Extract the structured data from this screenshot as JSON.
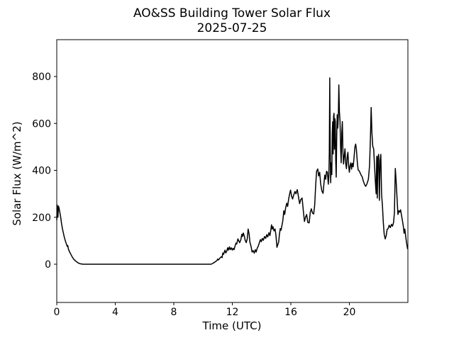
{
  "chart_data": {
    "type": "line",
    "title": "AO&SS Building Tower Solar Flux",
    "subtitle": "2025-07-25",
    "xlabel": "Time (UTC)",
    "ylabel": "Solar Flux (W/m^2)",
    "xlim": [
      0,
      24
    ],
    "ylim": [
      -163,
      957
    ],
    "xticks": [
      0,
      4,
      8,
      12,
      16,
      20
    ],
    "yticks": [
      0,
      200,
      400,
      600,
      800
    ],
    "grid": false,
    "legend_position": "none",
    "background": "#ffffff",
    "line_color": "#000000",
    "line_width": 1.5,
    "series": [
      {
        "name": "solar-flux",
        "points": [
          [
            0.0,
            188
          ],
          [
            0.03,
            252
          ],
          [
            0.08,
            200
          ],
          [
            0.12,
            248
          ],
          [
            0.17,
            235
          ],
          [
            0.22,
            218
          ],
          [
            0.27,
            200
          ],
          [
            0.33,
            172
          ],
          [
            0.4,
            148
          ],
          [
            0.47,
            128
          ],
          [
            0.53,
            112
          ],
          [
            0.6,
            97
          ],
          [
            0.67,
            84
          ],
          [
            0.72,
            76
          ],
          [
            0.75,
            80
          ],
          [
            0.8,
            64
          ],
          [
            0.88,
            52
          ],
          [
            0.95,
            44
          ],
          [
            1.05,
            32
          ],
          [
            1.15,
            22
          ],
          [
            1.3,
            13
          ],
          [
            1.45,
            6
          ],
          [
            1.6,
            2
          ],
          [
            1.8,
            0
          ],
          [
            3.0,
            0
          ],
          [
            5.0,
            0
          ],
          [
            7.0,
            0
          ],
          [
            9.0,
            0
          ],
          [
            10.3,
            0
          ],
          [
            10.55,
            0
          ],
          [
            10.65,
            3
          ],
          [
            10.75,
            7
          ],
          [
            10.85,
            11
          ],
          [
            10.95,
            16
          ],
          [
            11.0,
            22
          ],
          [
            11.05,
            18
          ],
          [
            11.15,
            26
          ],
          [
            11.25,
            32
          ],
          [
            11.3,
            28
          ],
          [
            11.35,
            48
          ],
          [
            11.4,
            42
          ],
          [
            11.5,
            60
          ],
          [
            11.55,
            48
          ],
          [
            11.62,
            56
          ],
          [
            11.68,
            70
          ],
          [
            11.73,
            60
          ],
          [
            11.8,
            74
          ],
          [
            11.85,
            62
          ],
          [
            11.92,
            70
          ],
          [
            12.0,
            60
          ],
          [
            12.05,
            68
          ],
          [
            12.12,
            62
          ],
          [
            12.18,
            76
          ],
          [
            12.25,
            90
          ],
          [
            12.3,
            86
          ],
          [
            12.38,
            108
          ],
          [
            12.45,
            98
          ],
          [
            12.5,
            92
          ],
          [
            12.58,
            104
          ],
          [
            12.65,
            128
          ],
          [
            12.7,
            118
          ],
          [
            12.75,
            133
          ],
          [
            12.82,
            120
          ],
          [
            12.88,
            102
          ],
          [
            12.95,
            92
          ],
          [
            13.02,
            108
          ],
          [
            13.08,
            150
          ],
          [
            13.15,
            128
          ],
          [
            13.2,
            95
          ],
          [
            13.28,
            76
          ],
          [
            13.35,
            52
          ],
          [
            13.42,
            58
          ],
          [
            13.5,
            47
          ],
          [
            13.57,
            62
          ],
          [
            13.63,
            52
          ],
          [
            13.7,
            68
          ],
          [
            13.78,
            78
          ],
          [
            13.85,
            92
          ],
          [
            13.92,
            105
          ],
          [
            13.98,
            96
          ],
          [
            14.05,
            110
          ],
          [
            14.12,
            102
          ],
          [
            14.2,
            118
          ],
          [
            14.28,
            110
          ],
          [
            14.35,
            126
          ],
          [
            14.42,
            116
          ],
          [
            14.5,
            134
          ],
          [
            14.57,
            122
          ],
          [
            14.63,
            145
          ],
          [
            14.68,
            168
          ],
          [
            14.73,
            150
          ],
          [
            14.78,
            160
          ],
          [
            14.85,
            142
          ],
          [
            14.92,
            150
          ],
          [
            14.98,
            125
          ],
          [
            15.05,
            72
          ],
          [
            15.1,
            82
          ],
          [
            15.17,
            95
          ],
          [
            15.22,
            128
          ],
          [
            15.28,
            152
          ],
          [
            15.33,
            145
          ],
          [
            15.4,
            168
          ],
          [
            15.45,
            185
          ],
          [
            15.52,
            228
          ],
          [
            15.58,
            212
          ],
          [
            15.65,
            242
          ],
          [
            15.72,
            260
          ],
          [
            15.78,
            246
          ],
          [
            15.85,
            278
          ],
          [
            15.92,
            300
          ],
          [
            15.98,
            316
          ],
          [
            16.05,
            290
          ],
          [
            16.12,
            278
          ],
          [
            16.2,
            296
          ],
          [
            16.28,
            310
          ],
          [
            16.35,
            300
          ],
          [
            16.44,
            318
          ],
          [
            16.52,
            288
          ],
          [
            16.6,
            258
          ],
          [
            16.68,
            276
          ],
          [
            16.77,
            282
          ],
          [
            16.85,
            230
          ],
          [
            16.93,
            182
          ],
          [
            17.0,
            200
          ],
          [
            17.08,
            212
          ],
          [
            17.16,
            178
          ],
          [
            17.25,
            176
          ],
          [
            17.33,
            222
          ],
          [
            17.4,
            236
          ],
          [
            17.48,
            218
          ],
          [
            17.56,
            214
          ],
          [
            17.63,
            252
          ],
          [
            17.7,
            340
          ],
          [
            17.76,
            396
          ],
          [
            17.84,
            406
          ],
          [
            17.9,
            376
          ],
          [
            17.97,
            392
          ],
          [
            18.04,
            342
          ],
          [
            18.12,
            312
          ],
          [
            18.2,
            302
          ],
          [
            18.26,
            342
          ],
          [
            18.32,
            380
          ],
          [
            18.38,
            362
          ],
          [
            18.44,
            396
          ],
          [
            18.5,
            392
          ],
          [
            18.56,
            341
          ],
          [
            18.6,
            380
          ],
          [
            18.63,
            480
          ],
          [
            18.66,
            794
          ],
          [
            18.69,
            500
          ],
          [
            18.72,
            347
          ],
          [
            18.76,
            432
          ],
          [
            18.8,
            382
          ],
          [
            18.83,
            560
          ],
          [
            18.86,
            607
          ],
          [
            18.89,
            470
          ],
          [
            18.92,
            630
          ],
          [
            18.95,
            643
          ],
          [
            18.98,
            490
          ],
          [
            19.01,
            620
          ],
          [
            19.04,
            607
          ],
          [
            19.07,
            440
          ],
          [
            19.1,
            371
          ],
          [
            19.14,
            560
          ],
          [
            19.17,
            637
          ],
          [
            19.21,
            580
          ],
          [
            19.25,
            640
          ],
          [
            19.28,
            764
          ],
          [
            19.32,
            650
          ],
          [
            19.36,
            613
          ],
          [
            19.4,
            500
          ],
          [
            19.44,
            432
          ],
          [
            19.48,
            560
          ],
          [
            19.52,
            608
          ],
          [
            19.56,
            480
          ],
          [
            19.6,
            427
          ],
          [
            19.65,
            460
          ],
          [
            19.7,
            492
          ],
          [
            19.75,
            430
          ],
          [
            19.8,
            407
          ],
          [
            19.85,
            455
          ],
          [
            19.9,
            477
          ],
          [
            19.95,
            420
          ],
          [
            20.0,
            392
          ],
          [
            20.05,
            420
          ],
          [
            20.1,
            432
          ],
          [
            20.15,
            405
          ],
          [
            20.2,
            430
          ],
          [
            20.26,
            415
          ],
          [
            20.32,
            455
          ],
          [
            20.38,
            500
          ],
          [
            20.43,
            512
          ],
          [
            20.48,
            490
          ],
          [
            20.55,
            430
          ],
          [
            20.6,
            402
          ],
          [
            20.67,
            398
          ],
          [
            20.73,
            390
          ],
          [
            20.8,
            380
          ],
          [
            20.88,
            372
          ],
          [
            20.95,
            355
          ],
          [
            21.05,
            338
          ],
          [
            21.12,
            332
          ],
          [
            21.2,
            342
          ],
          [
            21.3,
            362
          ],
          [
            21.38,
            420
          ],
          [
            21.44,
            540
          ],
          [
            21.49,
            668
          ],
          [
            21.54,
            560
          ],
          [
            21.6,
            502
          ],
          [
            21.66,
            492
          ],
          [
            21.72,
            420
          ],
          [
            21.78,
            348
          ],
          [
            21.83,
            300
          ],
          [
            21.87,
            460
          ],
          [
            21.91,
            282
          ],
          [
            21.95,
            455
          ],
          [
            22.0,
            468
          ],
          [
            22.05,
            272
          ],
          [
            22.1,
            440
          ],
          [
            22.15,
            468
          ],
          [
            22.2,
            300
          ],
          [
            22.26,
            250
          ],
          [
            22.32,
            178
          ],
          [
            22.38,
            128
          ],
          [
            22.45,
            108
          ],
          [
            22.52,
            122
          ],
          [
            22.58,
            148
          ],
          [
            22.65,
            152
          ],
          [
            22.72,
            166
          ],
          [
            22.8,
            156
          ],
          [
            22.88,
            170
          ],
          [
            22.95,
            162
          ],
          [
            23.02,
            178
          ],
          [
            23.08,
            220
          ],
          [
            23.14,
            408
          ],
          [
            23.2,
            350
          ],
          [
            23.26,
            280
          ],
          [
            23.32,
            212
          ],
          [
            23.38,
            228
          ],
          [
            23.44,
            222
          ],
          [
            23.5,
            232
          ],
          [
            23.56,
            210
          ],
          [
            23.62,
            188
          ],
          [
            23.68,
            165
          ],
          [
            23.74,
            132
          ],
          [
            23.79,
            150
          ],
          [
            23.85,
            118
          ],
          [
            23.9,
            95
          ],
          [
            23.98,
            64
          ]
        ]
      }
    ]
  }
}
